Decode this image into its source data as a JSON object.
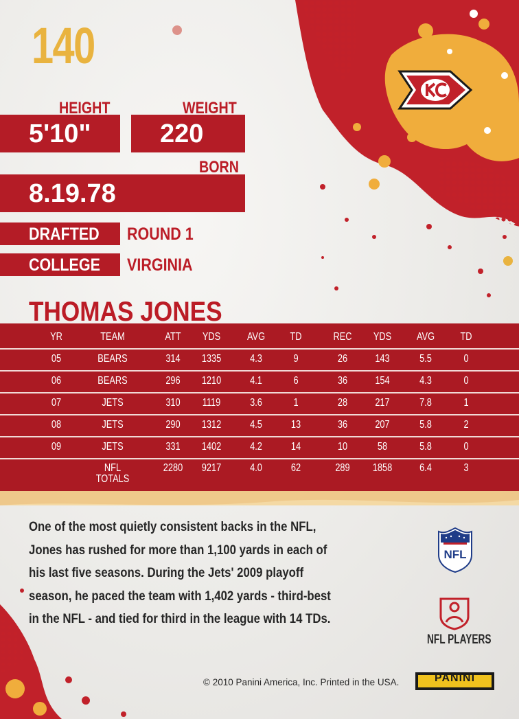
{
  "card": {
    "number": "140",
    "height_label": "HEIGHT",
    "height": "5'10\"",
    "weight_label": "WEIGHT",
    "weight": "220",
    "born_label": "BORN",
    "born": "8.19.78",
    "drafted_label": "DRAFTED",
    "drafted": "ROUND 1",
    "college_label": "COLLEGE",
    "college": "VIRGINIA",
    "player_name": "THOMAS JONES"
  },
  "stats": {
    "headers": [
      "YR",
      "TEAM",
      "ATT",
      "YDS",
      "AVG",
      "TD",
      "REC",
      "YDS",
      "AVG",
      "TD"
    ],
    "rows": [
      [
        "05",
        "BEARS",
        "314",
        "1335",
        "4.3",
        "9",
        "26",
        "143",
        "5.5",
        "0"
      ],
      [
        "06",
        "BEARS",
        "296",
        "1210",
        "4.1",
        "6",
        "36",
        "154",
        "4.3",
        "0"
      ],
      [
        "07",
        "JETS",
        "310",
        "1119",
        "3.6",
        "1",
        "28",
        "217",
        "7.8",
        "1"
      ],
      [
        "08",
        "JETS",
        "290",
        "1312",
        "4.5",
        "13",
        "36",
        "207",
        "5.8",
        "2"
      ],
      [
        "09",
        "JETS",
        "331",
        "1402",
        "4.2",
        "14",
        "10",
        "58",
        "5.8",
        "0"
      ]
    ],
    "totals": [
      "",
      "NFL TOTALS",
      "2280",
      "9217",
      "4.0",
      "62",
      "289",
      "1858",
      "6.4",
      "3"
    ]
  },
  "blurb": [
    "One of the most quietly consistent backs in the NFL,",
    "Jones has rushed for more than 1,100 yards in each of",
    "his last five seasons. During the Jets' 2009 playoff",
    "season, he paced the team with 1,402 yards - third-best",
    "in the NFL - and tied for third in the league with 14 TDs."
  ],
  "footer": {
    "nfl_players_label": "NFL PLAYERS",
    "copyright": "© 2010 Panini America, Inc. Printed in the USA.",
    "panini_logo": "PANINI"
  },
  "logos": {
    "team_logo": "chiefs-arrowhead-icon",
    "nfl_shield": "nfl-shield-icon",
    "nfl_players": "nfl-players-icon"
  },
  "colors": {
    "team_red": "#b41c26",
    "team_gold": "#e9b33f",
    "panini_yellow": "#f0c21e"
  }
}
